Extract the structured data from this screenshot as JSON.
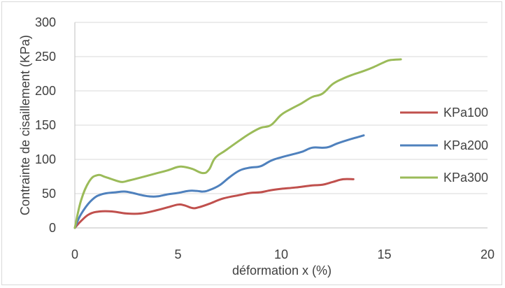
{
  "chart_data": {
    "type": "line",
    "title": "",
    "xlabel": "déformation x (%)",
    "ylabel": "Contrainte de cisaillement (KPa)",
    "xlim": [
      0,
      20
    ],
    "ylim": [
      0,
      300
    ],
    "x_ticks": [
      "0",
      "5",
      "10",
      "15",
      "20"
    ],
    "y_ticks": [
      "0",
      "50",
      "100",
      "150",
      "200",
      "250",
      "300"
    ],
    "grid": "horizontal",
    "legend": "right",
    "series": [
      {
        "name": "KPa100",
        "color": "#c0504d",
        "points": [
          [
            0,
            0
          ],
          [
            0.3,
            10
          ],
          [
            0.7,
            20
          ],
          [
            1.2,
            24
          ],
          [
            1.8,
            24
          ],
          [
            2.5,
            21
          ],
          [
            3.2,
            21
          ],
          [
            4,
            26
          ],
          [
            4.5,
            30
          ],
          [
            5,
            34
          ],
          [
            5.3,
            33
          ],
          [
            5.7,
            29
          ],
          [
            6,
            30
          ],
          [
            6.5,
            35
          ],
          [
            7.2,
            43
          ],
          [
            8,
            48
          ],
          [
            8.5,
            51
          ],
          [
            9,
            52
          ],
          [
            9.5,
            55
          ],
          [
            10,
            57
          ],
          [
            10.7,
            59
          ],
          [
            11.5,
            62
          ],
          [
            12,
            63
          ],
          [
            12.5,
            67
          ],
          [
            13,
            71
          ],
          [
            13.5,
            71
          ]
        ]
      },
      {
        "name": "KPa200",
        "color": "#4f81bd",
        "points": [
          [
            0,
            0
          ],
          [
            0.3,
            20
          ],
          [
            0.8,
            40
          ],
          [
            1.3,
            49
          ],
          [
            2,
            52
          ],
          [
            2.4,
            53
          ],
          [
            2.8,
            51
          ],
          [
            3.2,
            48
          ],
          [
            3.6,
            46
          ],
          [
            4,
            46
          ],
          [
            4.5,
            49
          ],
          [
            5,
            51
          ],
          [
            5.5,
            54
          ],
          [
            5.9,
            54
          ],
          [
            6.2,
            53
          ],
          [
            6.5,
            55
          ],
          [
            7,
            62
          ],
          [
            7.5,
            74
          ],
          [
            8,
            84
          ],
          [
            8.5,
            88
          ],
          [
            9,
            90
          ],
          [
            9.5,
            98
          ],
          [
            10,
            103
          ],
          [
            10.5,
            107
          ],
          [
            11,
            111
          ],
          [
            11.5,
            117
          ],
          [
            12,
            117
          ],
          [
            12.3,
            118
          ],
          [
            12.7,
            123
          ],
          [
            13.2,
            128
          ],
          [
            14,
            135
          ]
        ]
      },
      {
        "name": "KPa300",
        "color": "#9bbb59",
        "points": [
          [
            0,
            0
          ],
          [
            0.3,
            40
          ],
          [
            0.7,
            68
          ],
          [
            1.1,
            77
          ],
          [
            1.5,
            74
          ],
          [
            2,
            69
          ],
          [
            2.3,
            67
          ],
          [
            2.6,
            69
          ],
          [
            3,
            72
          ],
          [
            3.5,
            76
          ],
          [
            4,
            80
          ],
          [
            4.5,
            84
          ],
          [
            5,
            89
          ],
          [
            5.3,
            89
          ],
          [
            5.7,
            86
          ],
          [
            6.2,
            80
          ],
          [
            6.5,
            85
          ],
          [
            6.8,
            102
          ],
          [
            7.3,
            113
          ],
          [
            8,
            128
          ],
          [
            8.5,
            138
          ],
          [
            9,
            146
          ],
          [
            9.5,
            150
          ],
          [
            10,
            165
          ],
          [
            10.5,
            174
          ],
          [
            11,
            182
          ],
          [
            11.5,
            191
          ],
          [
            12,
            196
          ],
          [
            12.5,
            210
          ],
          [
            13,
            218
          ],
          [
            13.5,
            224
          ],
          [
            14,
            229
          ],
          [
            14.5,
            235
          ],
          [
            15,
            242
          ],
          [
            15.3,
            245
          ],
          [
            15.8,
            246
          ]
        ]
      }
    ]
  }
}
